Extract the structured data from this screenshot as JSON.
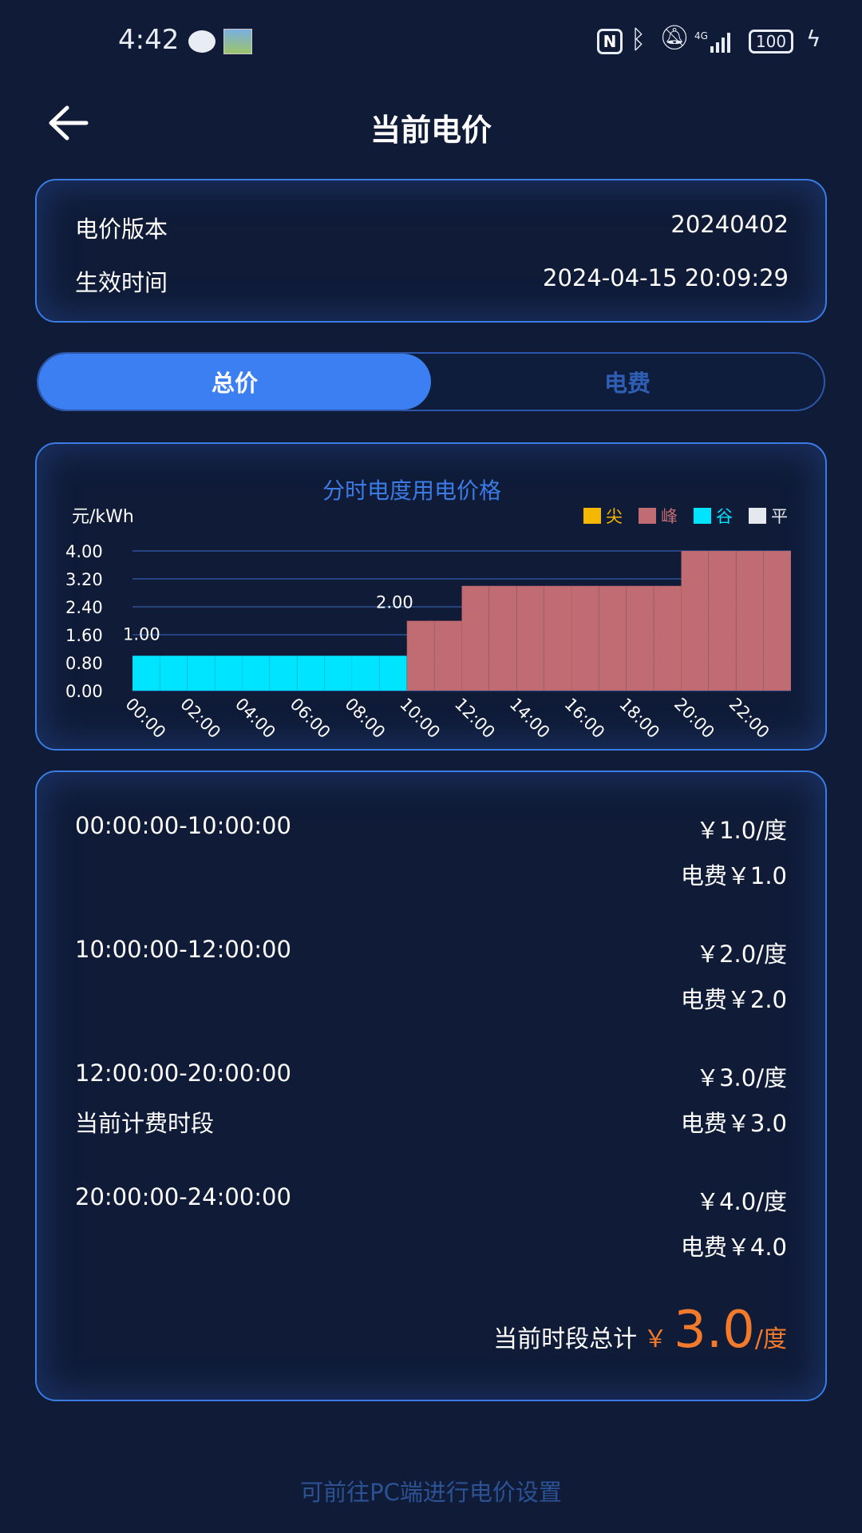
{
  "status_bar": {
    "time": "4:42",
    "icons": [
      "message-icon",
      "app-thumbnail-icon",
      "nfc-icon",
      "bluetooth-icon",
      "bell-muted-icon",
      "signal-4g-icon"
    ],
    "battery": "100"
  },
  "header": {
    "title": "当前电价",
    "back_icon": "arrow-left-icon"
  },
  "info": {
    "version_label": "电价版本",
    "version_value": "20240402",
    "effective_label": "生效时间",
    "effective_value": "2024-04-15 20:09:29"
  },
  "tabs": [
    {
      "label": "总价",
      "active": true
    },
    {
      "label": "电费",
      "active": false
    }
  ],
  "chart_data": {
    "type": "bar",
    "title": "分时电度用电价格",
    "ylabel": "元/kWh",
    "ylim": [
      0,
      4
    ],
    "yticks": [
      "0.00",
      "0.80",
      "1.60",
      "2.40",
      "3.20",
      "4.00"
    ],
    "xticks": [
      "00:00",
      "02:00",
      "04:00",
      "06:00",
      "08:00",
      "10:00",
      "12:00",
      "14:00",
      "16:00",
      "18:00",
      "20:00",
      "22:00"
    ],
    "hours": [
      0,
      1,
      2,
      3,
      4,
      5,
      6,
      7,
      8,
      9,
      10,
      11,
      12,
      13,
      14,
      15,
      16,
      17,
      18,
      19,
      20,
      21,
      22,
      23
    ],
    "values": [
      1,
      1,
      1,
      1,
      1,
      1,
      1,
      1,
      1,
      1,
      2,
      2,
      3,
      3,
      3,
      3,
      3,
      3,
      3,
      3,
      4,
      4,
      4,
      4
    ],
    "categories_per_hour": [
      "谷",
      "谷",
      "谷",
      "谷",
      "谷",
      "谷",
      "谷",
      "谷",
      "谷",
      "谷",
      "峰",
      "峰",
      "峰",
      "峰",
      "峰",
      "峰",
      "峰",
      "峰",
      "峰",
      "峰",
      "峰",
      "峰",
      "峰",
      "峰"
    ],
    "data_labels": [
      {
        "hour": 0,
        "text": "1.00"
      },
      {
        "hour": 10,
        "text": "2.00"
      }
    ],
    "legend": [
      {
        "name": "尖",
        "color": "#f5b800"
      },
      {
        "name": "峰",
        "color": "#c06c72"
      },
      {
        "name": "谷",
        "color": "#00e5ff"
      },
      {
        "name": "平",
        "color": "#e6e8f0"
      }
    ],
    "legend_position": "top-right",
    "grid": true
  },
  "periods": [
    {
      "range": "00:00:00-10:00:00",
      "price": "￥1.0/度",
      "fee": "电费￥1.0",
      "note": ""
    },
    {
      "range": "10:00:00-12:00:00",
      "price": "￥2.0/度",
      "fee": "电费￥2.0",
      "note": ""
    },
    {
      "range": "12:00:00-20:00:00",
      "price": "￥3.0/度",
      "fee": "电费￥3.0",
      "note": "当前计费时段"
    },
    {
      "range": "20:00:00-24:00:00",
      "price": "￥4.0/度",
      "fee": "电费￥4.0",
      "note": ""
    }
  ],
  "total": {
    "label": "当前时段总计",
    "currency": "￥",
    "value": "3.0",
    "unit": "/度",
    "color": "#f27a2a"
  },
  "footer": {
    "hint": "可前往PC端进行电价设置"
  }
}
